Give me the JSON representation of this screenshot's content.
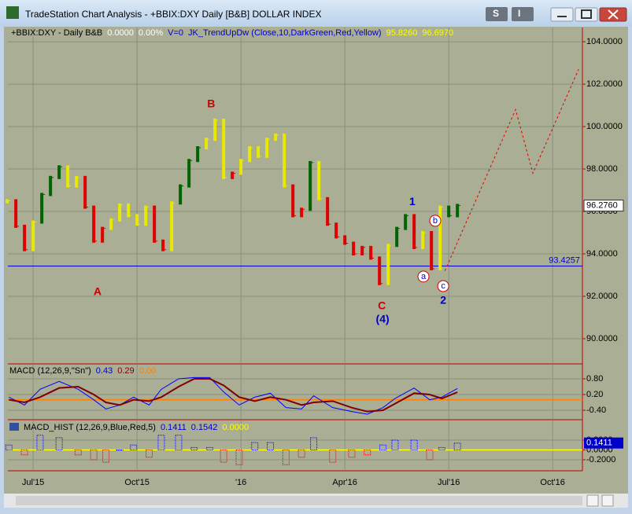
{
  "window": {
    "title": "TradeStation Chart Analysis - +BBIX:DXY Daily [B&B] DOLLAR INDEX",
    "buttons": [
      "S",
      "I"
    ]
  },
  "chart_data": [
    {
      "type": "price_bars",
      "header": [
        {
          "text": "+BBIX:DXY - Daily  B&B",
          "color": "#000000"
        },
        {
          "text": "0.0000",
          "color": "#ffffff"
        },
        {
          "text": "0.00%",
          "color": "#ffffff"
        },
        {
          "text": "V=0",
          "color": "#0000cc"
        },
        {
          "text": "JK_TrendUpDw (Close,10,DarkGreen,Red,Yellow)",
          "color": "#0000cc"
        },
        {
          "text": "95.8260",
          "color": "#ffff00"
        },
        {
          "text": "96.6970",
          "color": "#ffff00"
        }
      ],
      "x": [
        5.25,
        5.5,
        5.75,
        6,
        6.25,
        6.5,
        6.75,
        7,
        7.25,
        7.5,
        7.75,
        8,
        8.25,
        8.5,
        8.75,
        9,
        9.25,
        9.5,
        9.75,
        10,
        10.25,
        10.5,
        10.75,
        11,
        11.25,
        11.5,
        11.75,
        12,
        12.25,
        12.5,
        12.75,
        13,
        13.25,
        13.5,
        13.75,
        14,
        14.25,
        14.5,
        14.75,
        15,
        15.25,
        15.5,
        15.75,
        16,
        16.25,
        16.5,
        16.75,
        17,
        17.25,
        17.5,
        17.75,
        18,
        18.25
      ],
      "values": [
        96.5,
        95.3,
        94.2,
        95.5,
        96.8,
        97.6,
        98.1,
        97.2,
        97.6,
        96.2,
        94.6,
        95.2,
        95.6,
        96.3,
        95.8,
        95.4,
        96.2,
        94.6,
        94.2,
        96.4,
        97.2,
        98.4,
        99.0,
        99.4,
        100.3,
        97.6,
        97.8,
        98.4,
        99.0,
        98.6,
        99.4,
        99.6,
        97.2,
        95.8,
        96.1,
        98.3,
        96.6,
        95.4,
        94.8,
        94.5,
        94.0,
        94.3,
        93.8,
        92.6,
        94.4,
        95.2,
        95.8,
        94.3,
        95.0,
        93.3,
        96.2,
        95.8,
        96.28
      ],
      "colors": [
        "#e8e800",
        "#e00000",
        "#e00000",
        "#e8e800",
        "#006400",
        "#006400",
        "#006400",
        "#e8e800",
        "#e8e800",
        "#e00000",
        "#e00000",
        "#e00000",
        "#e8e800",
        "#e8e800",
        "#e8e800",
        "#e8e800",
        "#e8e800",
        "#e00000",
        "#e00000",
        "#e8e800",
        "#006400",
        "#006400",
        "#006400",
        "#e8e800",
        "#e8e800",
        "#e8e800",
        "#e00000",
        "#e8e800",
        "#e8e800",
        "#e8e800",
        "#e8e800",
        "#e8e800",
        "#e8e800",
        "#e00000",
        "#e00000",
        "#006400",
        "#e8e800",
        "#e00000",
        "#e00000",
        "#e00000",
        "#e00000",
        "#e00000",
        "#e00000",
        "#e00000",
        "#e8e800",
        "#006400",
        "#006400",
        "#e00000",
        "#e8e800",
        "#e00000",
        "#e8e800",
        "#006400",
        "#006400"
      ],
      "projection": {
        "x": [
          17.89,
          19.93,
          20.43,
          21.75
        ],
        "values": [
          93.2,
          100.8,
          97.8,
          102.7
        ],
        "color": "#e00000"
      },
      "support": {
        "value": 93.4257,
        "color": "#0000cc"
      },
      "last_price": {
        "value": 96.276,
        "label": "96.2760"
      },
      "annotations": [
        {
          "text": "A",
          "x": 7.86,
          "y": 92.19,
          "color": "#cc0000",
          "circled": false
        },
        {
          "text": "B",
          "x": 11.14,
          "y": 101.04,
          "color": "#cc0000",
          "circled": false
        },
        {
          "text": "C",
          "x": 16.07,
          "y": 91.52,
          "color": "#cc0000",
          "circled": false
        },
        {
          "text": "(4)",
          "x": 16.09,
          "y": 90.89,
          "color": "#0000cc",
          "circled": false
        },
        {
          "text": "1",
          "x": 16.95,
          "y": 96.44,
          "color": "#0000cc",
          "circled": false
        },
        {
          "text": "2",
          "x": 17.84,
          "y": 91.78,
          "color": "#0000cc",
          "circled": false
        },
        {
          "text": "a",
          "x": 17.27,
          "y": 92.93,
          "color": "#cc0000",
          "circled": true
        },
        {
          "text": "b",
          "x": 17.61,
          "y": 95.56,
          "color": "#cc0000",
          "circled": true
        },
        {
          "text": "c",
          "x": 17.84,
          "y": 92.48,
          "color": "#cc0000",
          "circled": true
        }
      ],
      "xlim": [
        5.27,
        21.86
      ],
      "xticks": [
        {
          "value": 6,
          "label": "Jul'15"
        },
        {
          "value": 9,
          "label": "Oct'15"
        },
        {
          "value": 12,
          "label": "'16"
        },
        {
          "value": 15,
          "label": "Apr'16"
        },
        {
          "value": 18,
          "label": "Jul'16"
        },
        {
          "value": 21,
          "label": "Oct'16"
        }
      ],
      "ylim": [
        88.85,
        104.67
      ],
      "yticks": [
        {
          "value": 90,
          "label": "90.0000"
        },
        {
          "value": 92,
          "label": "92.0000"
        },
        {
          "value": 94,
          "label": "94.0000"
        },
        {
          "value": 96,
          "label": "96.0000"
        },
        {
          "value": 98,
          "label": "98.0000"
        },
        {
          "value": 100,
          "label": "100.0000"
        },
        {
          "value": 102,
          "label": "102.0000"
        },
        {
          "value": 104,
          "label": "104.0000"
        }
      ],
      "grid": true
    },
    {
      "type": "line",
      "header": [
        {
          "text": "MACD (12,26,9,\"Sn\")",
          "color": "#000000"
        },
        {
          "text": "0.43",
          "color": "#0000cc"
        },
        {
          "text": "0.29",
          "color": "#800000"
        },
        {
          "text": "0.00",
          "color": "#ff8000"
        }
      ],
      "x": [
        5.3,
        5.75,
        6.2,
        6.75,
        7.3,
        7.75,
        8.1,
        8.5,
        8.9,
        9.35,
        9.7,
        10.2,
        10.65,
        11.1,
        11.5,
        11.95,
        12.4,
        12.85,
        13.3,
        13.75,
        14.1,
        14.65,
        15.2,
        15.65,
        16.1,
        16.45,
        17.0,
        17.45,
        17.8,
        18.25
      ],
      "series": [
        {
          "color": "#0000ff",
          "values": [
            0.1,
            -0.2,
            0.4,
            0.7,
            0.4,
            0.0,
            -0.35,
            -0.2,
            0.1,
            -0.2,
            0.4,
            0.8,
            0.85,
            0.85,
            0.3,
            -0.2,
            0.1,
            0.25,
            -0.3,
            -0.35,
            0.15,
            -0.3,
            -0.45,
            -0.55,
            -0.3,
            0.05,
            0.45,
            0.0,
            0.1,
            0.43
          ]
        },
        {
          "color": "#800000",
          "values": [
            0.0,
            -0.1,
            0.1,
            0.45,
            0.5,
            0.2,
            -0.1,
            -0.2,
            0.0,
            -0.05,
            0.1,
            0.5,
            0.8,
            0.8,
            0.55,
            0.1,
            -0.05,
            0.1,
            0.0,
            -0.2,
            -0.1,
            -0.05,
            -0.3,
            -0.45,
            -0.4,
            -0.15,
            0.25,
            0.2,
            0.05,
            0.29
          ]
        }
      ],
      "reference_line": {
        "value": 0,
        "color": "#ff8000"
      },
      "ylim": [
        -0.73,
        1.34
      ],
      "yticks": [
        {
          "value": 0.8,
          "label": "0.80"
        },
        {
          "value": 0.2,
          "label": "0.20"
        },
        {
          "value": -0.4,
          "label": "-0.40"
        }
      ]
    },
    {
      "type": "histogram",
      "header": [
        {
          "text": "MACD_HIST (12,26,9,Blue,Red,5)",
          "color": "#000000"
        },
        {
          "text": "0.1411",
          "color": "#0000cc"
        },
        {
          "text": "0.1542",
          "color": "#0000cc"
        },
        {
          "text": "0.0000",
          "color": "#ffff00"
        }
      ],
      "x": [
        5.3,
        5.75,
        6.2,
        6.75,
        7.3,
        7.75,
        8.1,
        8.5,
        8.9,
        9.35,
        9.7,
        10.2,
        10.65,
        11.1,
        11.5,
        11.95,
        12.4,
        12.85,
        13.3,
        13.75,
        14.1,
        14.65,
        15.2,
        15.65,
        16.1,
        16.45,
        17.0,
        17.45,
        17.8,
        18.25
      ],
      "values": [
        0.1,
        -0.1,
        0.3,
        0.25,
        -0.1,
        -0.2,
        -0.25,
        0,
        0.1,
        -0.15,
        0.3,
        0.3,
        0.05,
        0.05,
        -0.25,
        -0.3,
        0.15,
        0.15,
        -0.3,
        -0.15,
        0.25,
        -0.25,
        -0.15,
        -0.1,
        0.1,
        0.2,
        0.2,
        -0.2,
        0.05,
        0.14
      ],
      "up_color": "#0000ff",
      "down_color": "#e00000",
      "reference_line": {
        "value": 0,
        "color": "#ffff00"
      },
      "last_value": {
        "value": 0.1411,
        "label": "0.1411"
      },
      "ylim": [
        -0.408,
        0.6
      ],
      "yticks": [
        {
          "value": 0.2,
          "label": "0.2000"
        },
        {
          "value": 0,
          "label": "0.0000"
        },
        {
          "value": -0.2,
          "label": "-0.2000"
        }
      ]
    }
  ]
}
